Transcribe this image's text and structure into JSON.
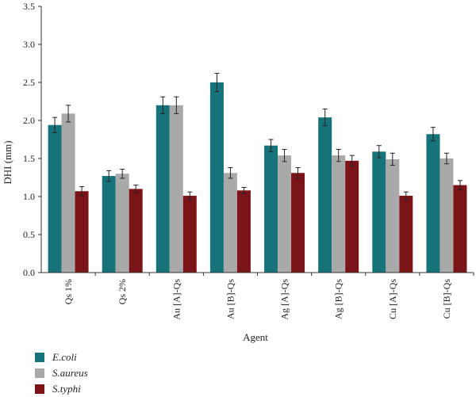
{
  "chart_data": {
    "type": "bar",
    "title": "",
    "xlabel": "Agent",
    "ylabel": "DHI (mm)",
    "ylim": [
      0,
      3.5
    ],
    "yticks": [
      "0.0",
      "0.5",
      "1.0",
      "1.5",
      "2.0",
      "2.5",
      "3.0",
      "3.5"
    ],
    "grid": false,
    "legend_position": "bottom-left",
    "categories": [
      "Qs 1%",
      "Qs 2%",
      "Au [A]-Qs",
      "Au [B]-Qs",
      "Ag [A]-Qs",
      "Ag [B]-Qs",
      "Cu [A]-Qs",
      "Cu [B]-Qs"
    ],
    "series": [
      {
        "name": "E.coli",
        "color": "#17737a",
        "values": [
          1.94,
          1.27,
          2.2,
          2.5,
          1.67,
          2.04,
          1.59,
          1.82
        ],
        "errors": [
          0.1,
          0.07,
          0.11,
          0.12,
          0.08,
          0.11,
          0.08,
          0.09
        ]
      },
      {
        "name": "S.aureus",
        "color": "#a9a9a9",
        "values": [
          2.09,
          1.3,
          2.2,
          1.31,
          1.54,
          1.54,
          1.49,
          1.5
        ],
        "errors": [
          0.11,
          0.06,
          0.11,
          0.07,
          0.08,
          0.08,
          0.08,
          0.07
        ]
      },
      {
        "name": "S.typhi",
        "color": "#7b1419",
        "values": [
          1.07,
          1.1,
          1.01,
          1.08,
          1.31,
          1.47,
          1.01,
          1.15
        ],
        "errors": [
          0.06,
          0.05,
          0.05,
          0.04,
          0.07,
          0.07,
          0.05,
          0.06
        ]
      }
    ]
  }
}
